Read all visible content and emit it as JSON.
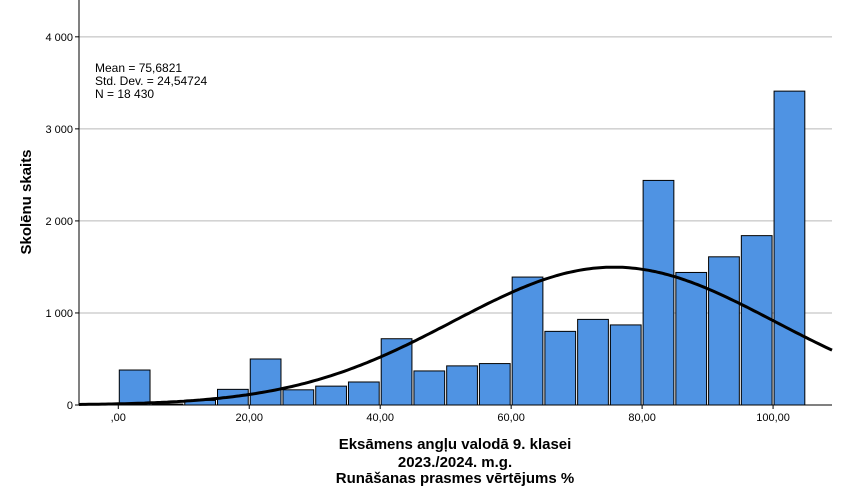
{
  "chart_data": {
    "type": "bar",
    "subtype": "histogram",
    "bins": [
      {
        "x0": 0,
        "x1": 5,
        "value": 380
      },
      {
        "x0": 5,
        "x1": 10,
        "value": 10
      },
      {
        "x0": 10,
        "x1": 15,
        "value": 50
      },
      {
        "x0": 15,
        "x1": 20,
        "value": 170
      },
      {
        "x0": 20,
        "x1": 25,
        "value": 500
      },
      {
        "x0": 25,
        "x1": 30,
        "value": 165
      },
      {
        "x0": 30,
        "x1": 35,
        "value": 205
      },
      {
        "x0": 35,
        "x1": 40,
        "value": 250
      },
      {
        "x0": 40,
        "x1": 45,
        "value": 720
      },
      {
        "x0": 45,
        "x1": 50,
        "value": 370
      },
      {
        "x0": 50,
        "x1": 55,
        "value": 425
      },
      {
        "x0": 55,
        "x1": 60,
        "value": 450
      },
      {
        "x0": 60,
        "x1": 65,
        "value": 1390
      },
      {
        "x0": 65,
        "x1": 70,
        "value": 800
      },
      {
        "x0": 70,
        "x1": 75,
        "value": 930
      },
      {
        "x0": 75,
        "x1": 80,
        "value": 870
      },
      {
        "x0": 80,
        "x1": 85,
        "value": 2440
      },
      {
        "x0": 85,
        "x1": 90,
        "value": 1440
      },
      {
        "x0": 90,
        "x1": 95,
        "value": 1610
      },
      {
        "x0": 95,
        "x1": 100,
        "value": 1840
      },
      {
        "x0": 100,
        "x1": 105,
        "value": 3410
      }
    ],
    "normal_curve": {
      "mean": 75.6821,
      "sd": 24.54724,
      "n": 18430,
      "bin_width": 5
    },
    "stats_text": [
      "Mean = 75,6821",
      "Std. Dev. = 24,54724",
      "N = 18 430"
    ],
    "xticks": [
      {
        "value": 0,
        "label": ",00"
      },
      {
        "value": 20,
        "label": "20,00"
      },
      {
        "value": 40,
        "label": "40,00"
      },
      {
        "value": 60,
        "label": "60,00"
      },
      {
        "value": 80,
        "label": "80,00"
      },
      {
        "value": 100,
        "label": "100,00"
      }
    ],
    "yticks": [
      {
        "value": 0,
        "label": "0"
      },
      {
        "value": 1000,
        "label": "1 000"
      },
      {
        "value": 2000,
        "label": "2 000"
      },
      {
        "value": 3000,
        "label": "3 000"
      },
      {
        "value": 4000,
        "label": "4 000"
      }
    ],
    "xlim": [
      -6,
      109
    ],
    "ylim": [
      0,
      4400
    ],
    "ylabel": "Skolēnu skaits",
    "xlabel_lines": [
      "Eksāmens angļu valodā 9. klasei",
      "2023./2024. m.g.",
      "Runāšanas prasmes vērtējums %"
    ],
    "grid": "horizontal",
    "colors": {
      "bar_fill": "#4f93e3",
      "bar_stroke": "#000000",
      "curve": "#000000",
      "grid": "#b9b9b9"
    }
  }
}
